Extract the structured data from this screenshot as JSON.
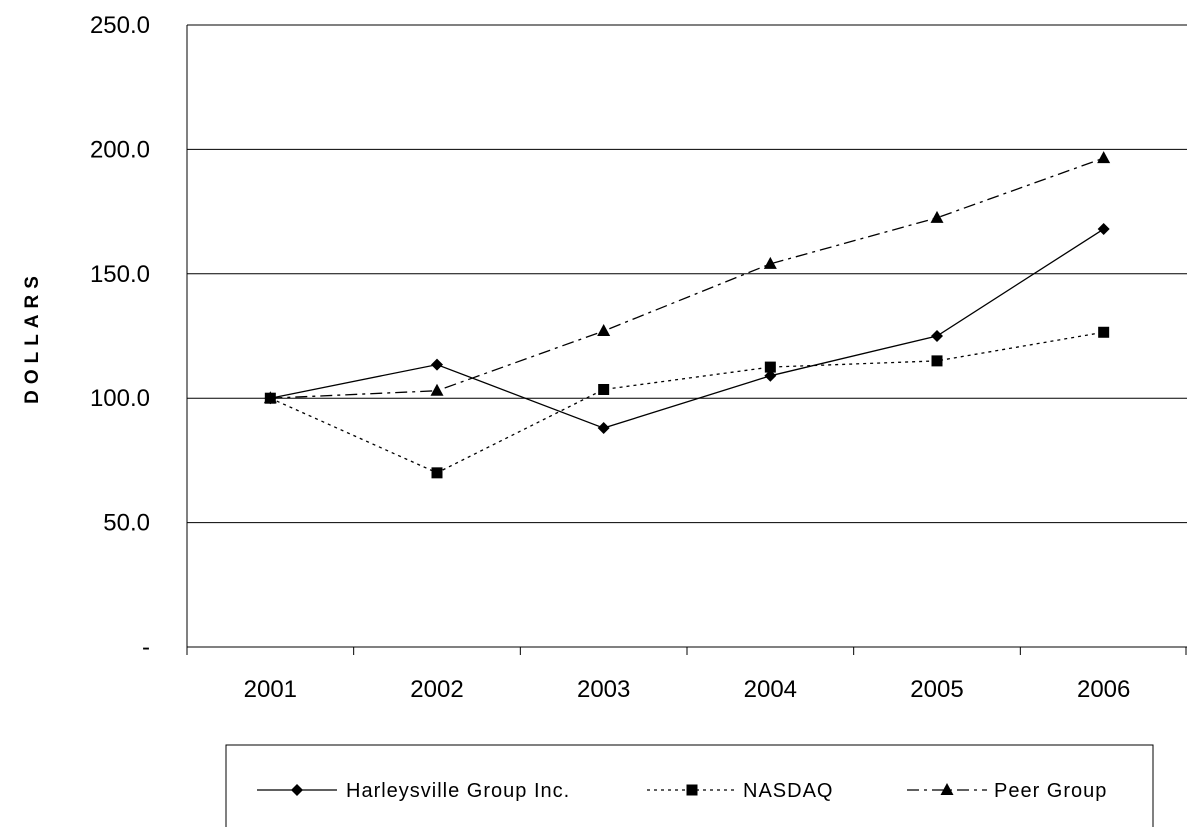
{
  "chart_data": {
    "type": "line",
    "ylabel": "DOLLARS",
    "xlabel": "",
    "categories": [
      "2001",
      "2002",
      "2003",
      "2004",
      "2005",
      "2006"
    ],
    "ylim": [
      0,
      250
    ],
    "y_ticks": [
      0,
      50,
      100,
      150,
      200,
      250
    ],
    "y_tick_labels": [
      "-",
      "50.0",
      "100.0",
      "150.0",
      "200.0",
      "250.0"
    ],
    "grid": true,
    "legend_position": "bottom",
    "series": [
      {
        "name": "Harleysville Group Inc.",
        "values": [
          100.0,
          113.5,
          88.0,
          109.0,
          125.0,
          168.0
        ],
        "marker": "diamond",
        "dash": "solid",
        "color": "#000000"
      },
      {
        "name": "NASDAQ",
        "values": [
          100.0,
          70.0,
          103.5,
          112.5,
          115.0,
          126.5
        ],
        "marker": "square",
        "dash": "dotted",
        "color": "#000000"
      },
      {
        "name": "Peer Group",
        "values": [
          100.0,
          103.0,
          127.0,
          154.0,
          172.5,
          196.5
        ],
        "marker": "triangle",
        "dash": "dashdot",
        "color": "#000000"
      }
    ]
  }
}
